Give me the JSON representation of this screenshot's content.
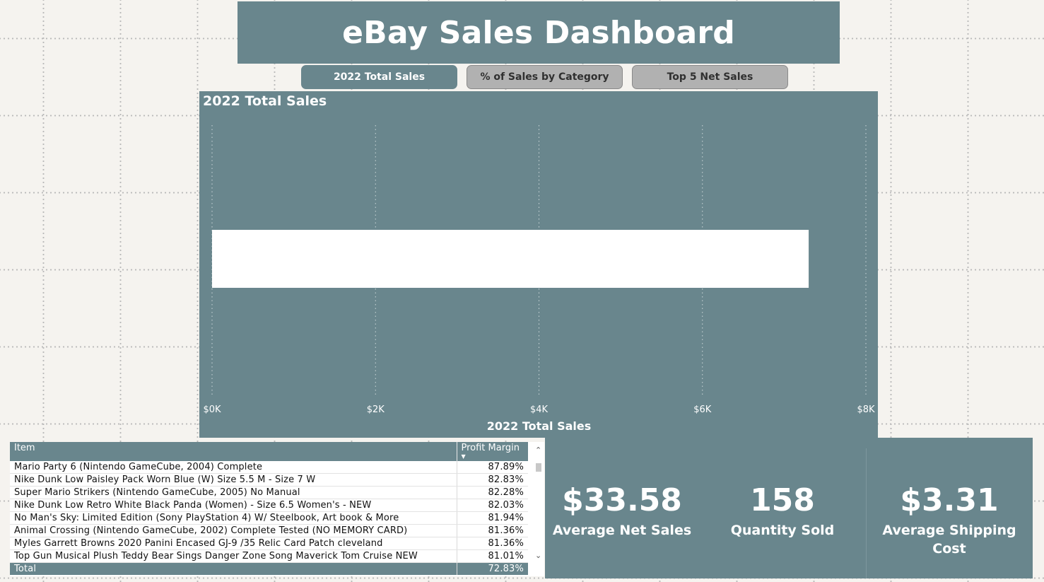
{
  "dashboard": {
    "title": "eBay Sales Dashboard"
  },
  "nav": [
    {
      "label": "2022 Total Sales",
      "active": true
    },
    {
      "label": "% of Sales by Category",
      "active": false
    },
    {
      "label": "Top 5 Net Sales",
      "active": false
    }
  ],
  "chart_data": {
    "type": "bar",
    "orientation": "horizontal",
    "title": "2022 Total Sales",
    "xlabel": "2022 Total Sales",
    "ylabel": "",
    "categories": [
      ""
    ],
    "values": [
      7300
    ],
    "xlim": [
      0,
      8000
    ],
    "x_ticks": [
      0,
      2000,
      4000,
      6000,
      8000
    ],
    "x_tick_labels": [
      "$0K",
      "$2K",
      "$4K",
      "$6K",
      "$8K"
    ],
    "grid": true,
    "bar_color": "#ffffff",
    "background_color": "#69868d"
  },
  "table": {
    "columns": [
      "Item",
      "Profit Margin"
    ],
    "rows": [
      {
        "item": "Mario Party 6 (Nintendo GameCube, 2004) Complete",
        "margin": "87.89%"
      },
      {
        "item": "Nike Dunk Low Paisley Pack Worn Blue (W) Size 5.5 M - Size 7 W",
        "margin": "82.83%"
      },
      {
        "item": "Super Mario Strikers (Nintendo GameCube, 2005) No Manual",
        "margin": "82.28%"
      },
      {
        "item": "Nike Dunk Low Retro White Black Panda (Women) - Size 6.5 Women's - NEW",
        "margin": "82.03%"
      },
      {
        "item": "No Man's Sky: Limited Edition (Sony PlayStation 4) W/ Steelbook, Art book & More",
        "margin": "81.94%"
      },
      {
        "item": "Animal Crossing (Nintendo GameCube, 2002) Complete Tested (NO MEMORY CARD)",
        "margin": "81.36%"
      },
      {
        "item": "Myles Garrett Browns 2020 Panini Encased GJ-9 /35 Relic Card Patch cleveland",
        "margin": "81.36%"
      },
      {
        "item": "Top Gun Musical Plush Teddy Bear Sings Danger Zone Song Maverick Tom Cruise NEW",
        "margin": "81.01%"
      }
    ],
    "total": {
      "label": "Total",
      "margin": "72.83%"
    }
  },
  "kpis": [
    {
      "value": "$33.58",
      "label": "Average Net Sales"
    },
    {
      "value": "158",
      "label": "Quantity Sold"
    },
    {
      "value": "$3.31",
      "label": "Average Shipping Cost"
    }
  ],
  "colors": {
    "accent": "#69868d",
    "button_inactive": "#b1b1b1",
    "canvas": "#f5f3ef"
  }
}
